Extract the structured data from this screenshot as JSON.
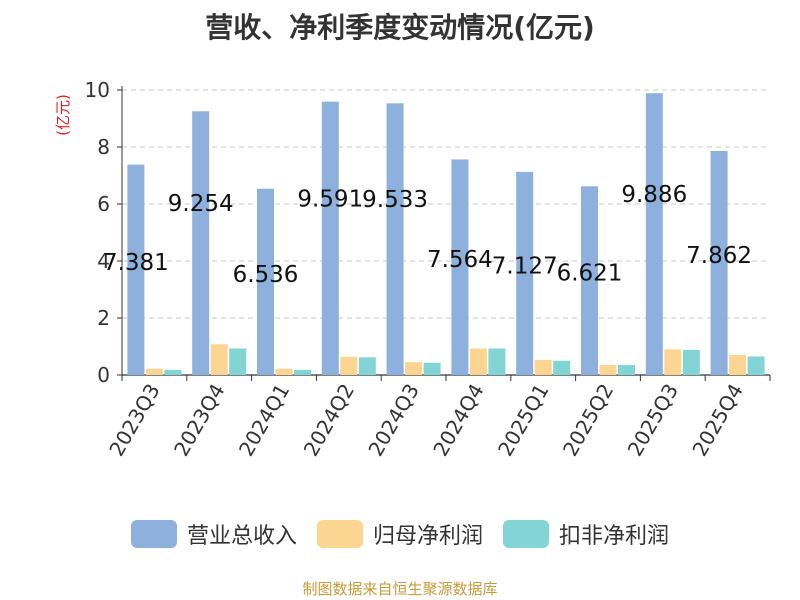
{
  "chart_data": {
    "type": "bar",
    "title": "营收、净利季度变动情况(亿元)",
    "ylabel": "(亿元)",
    "ylim": [
      0,
      10
    ],
    "yticks": [
      0,
      2,
      4,
      6,
      8,
      10
    ],
    "grid": true,
    "legend_position": "bottom",
    "categories": [
      "2023Q3",
      "2023Q4",
      "2024Q1",
      "2024Q2",
      "2024Q3",
      "2024Q4",
      "2025Q1",
      "2025Q2",
      "2025Q3",
      "2025Q4"
    ],
    "series": [
      {
        "name": "营业总收入",
        "color": "#8eb0dd",
        "values": [
          7.381,
          9.254,
          6.536,
          9.591,
          9.533,
          7.564,
          7.127,
          6.621,
          9.886,
          7.862
        ],
        "labels": [
          "7.381",
          "9.254",
          "6.536",
          "9.591",
          "9.533",
          "7.564",
          "7.127",
          "6.621",
          "9.886",
          "7.862"
        ]
      },
      {
        "name": "归母净利润",
        "color": "#fdd592",
        "values": [
          0.22,
          1.08,
          0.22,
          0.64,
          0.45,
          0.93,
          0.53,
          0.35,
          0.9,
          0.7
        ]
      },
      {
        "name": "扣非净利润",
        "color": "#83d4d4",
        "values": [
          0.18,
          0.93,
          0.18,
          0.62,
          0.43,
          0.93,
          0.5,
          0.35,
          0.88,
          0.65
        ]
      }
    ]
  },
  "source": "制图数据来自恒生聚源数据库"
}
